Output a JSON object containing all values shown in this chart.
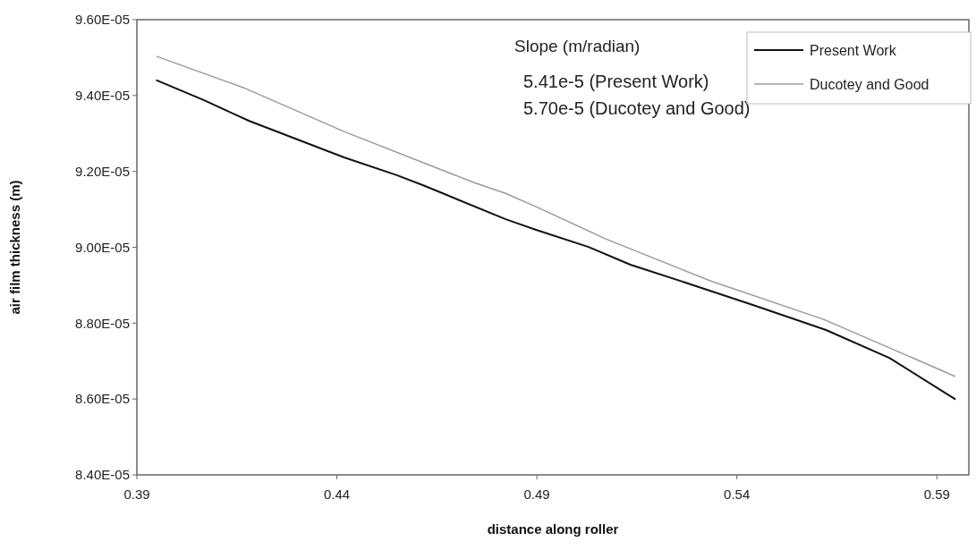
{
  "chart_data": {
    "type": "line",
    "xlabel": "distance along roller",
    "ylabel": "air film thickness (m)",
    "xlim": [
      0.39,
      0.598
    ],
    "xticks": [
      0.39,
      0.44,
      0.49,
      0.54,
      0.59
    ],
    "ylim": [
      8.4e-05,
      9.6e-05
    ],
    "yticks": [
      {
        "value": 8.4e-05,
        "label": "8.40E-05"
      },
      {
        "value": 8.6e-05,
        "label": "8.60E-05"
      },
      {
        "value": 8.8e-05,
        "label": "8.80E-05"
      },
      {
        "value": 9e-05,
        "label": "9.00E-05"
      },
      {
        "value": 9.2e-05,
        "label": "9.20E-05"
      },
      {
        "value": 9.4e-05,
        "label": "9.40E-05"
      },
      {
        "value": 9.6e-05,
        "label": "9.60E-05"
      }
    ],
    "series": [
      {
        "name": "Present Work",
        "color": "#111111",
        "x": [
          0.395,
          0.4067,
          0.4181,
          0.4418,
          0.455,
          0.4619,
          0.4822,
          0.4898,
          0.5029,
          0.5134,
          0.53,
          0.544,
          0.5623,
          0.5782,
          0.5945
        ],
        "values": [
          9.44e-05,
          9.388e-05,
          9.333e-05,
          9.237e-05,
          9.19e-05,
          9.162e-05,
          9.074e-05,
          9.046e-05,
          9.001e-05,
          8.954e-05,
          8.897e-05,
          8.848e-05,
          8.782e-05,
          8.708e-05,
          8.6e-05
        ]
      },
      {
        "name": "Ducotey and Good",
        "color": "#9a9a9a",
        "x": [
          0.395,
          0.4166,
          0.4418,
          0.4742,
          0.4822,
          0.4898,
          0.5072,
          0.5335,
          0.5617,
          0.5945
        ],
        "values": [
          9.503e-05,
          9.421e-05,
          9.305e-05,
          9.171e-05,
          9.142e-05,
          9.107e-05,
          9.022e-05,
          8.911e-05,
          8.81e-05,
          8.66e-05
        ]
      }
    ],
    "annotations": [
      "Slope (m/radian)",
      "5.41e-5 (Present Work)",
      "5.70e-5 (Ducotey and Good)"
    ],
    "legend": "top right",
    "grid": false,
    "marker": "none",
    "line_style": "solid"
  }
}
